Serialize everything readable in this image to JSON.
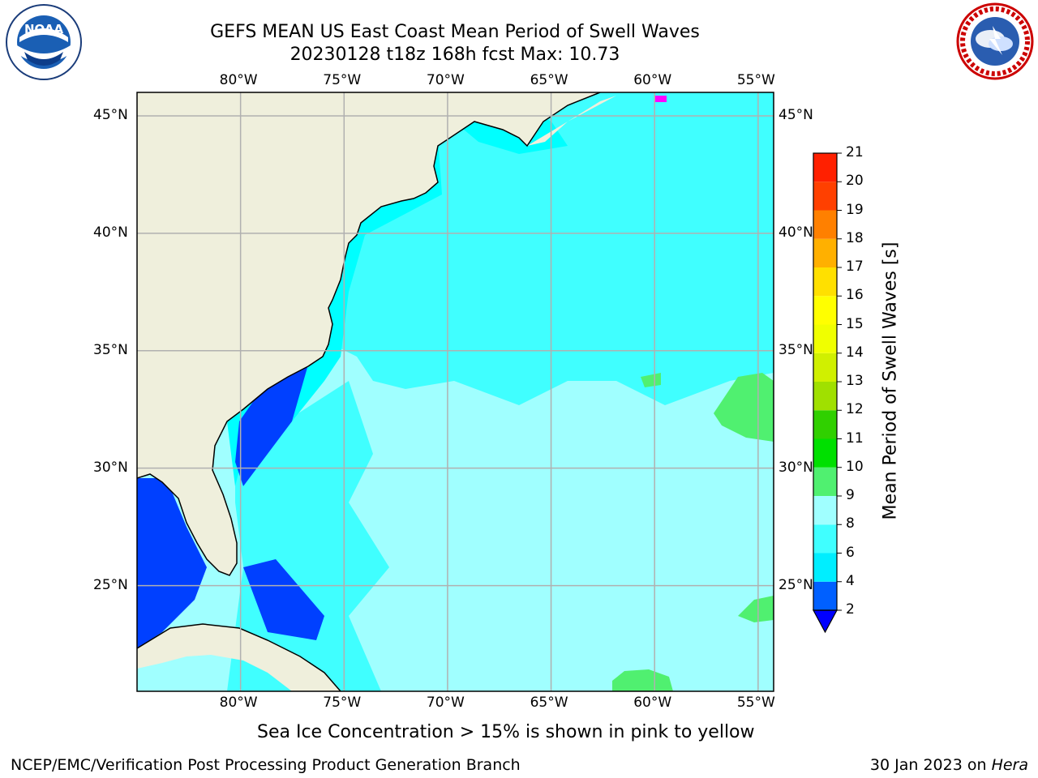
{
  "title": {
    "line1": "GEFS MEAN US East Coast Mean Period of Swell Waves",
    "line2": "20230128 t18z 168h fcst   Max: 10.73"
  },
  "map": {
    "lon_range": [
      -85,
      -54.25
    ],
    "lat_range": [
      20.5,
      46
    ],
    "lon_ticks": [
      {
        "value": -80,
        "label": "80°W"
      },
      {
        "value": -75,
        "label": "75°W"
      },
      {
        "value": -70,
        "label": "70°W"
      },
      {
        "value": -65,
        "label": "65°W"
      },
      {
        "value": -60,
        "label": "60°W"
      },
      {
        "value": -55,
        "label": "55°W"
      }
    ],
    "lat_ticks": [
      {
        "value": 45,
        "label": "45°N"
      },
      {
        "value": 40,
        "label": "40°N"
      },
      {
        "value": 35,
        "label": "35°N"
      },
      {
        "value": 30,
        "label": "30°N"
      },
      {
        "value": 25,
        "label": "25°N"
      }
    ],
    "colors": {
      "land": "#efefdc",
      "coast": "#000000",
      "grid": "#b0b0b0",
      "p2_4": "#0040ff",
      "p4_6": "#00ffff",
      "p6_8": "#40ffff",
      "p8_9": "#a0ffff",
      "p9_10": "#50f070",
      "ice": "#ff00ff"
    }
  },
  "colorbar": {
    "label": "Mean Period of Swell Waves [s]",
    "levels": [
      2,
      4,
      6,
      8,
      9,
      10,
      11,
      12,
      13,
      14,
      15,
      16,
      17,
      18,
      19,
      20,
      21
    ],
    "colors": [
      "#0060ff",
      "#00eeff",
      "#40ffff",
      "#a0ffff",
      "#50f070",
      "#00e000",
      "#30d000",
      "#a0e000",
      "#d0f000",
      "#f0ff00",
      "#ffff00",
      "#ffe000",
      "#ffb000",
      "#ff8000",
      "#ff4000",
      "#ff2000",
      "#ff0000"
    ],
    "under_color": "#0000ff"
  },
  "caption": "Sea Ice Concentration > 15% is shown in pink to yellow",
  "footer": {
    "left": "NCEP/EMC/Verification Post Processing Product Generation Branch",
    "right_date": "30 Jan 2023 on",
    "right_machine": "Hera"
  },
  "logos": {
    "noaa_icon": "noaa-logo",
    "noaa_text": "NOAA",
    "nws_icon": "nws-logo"
  }
}
